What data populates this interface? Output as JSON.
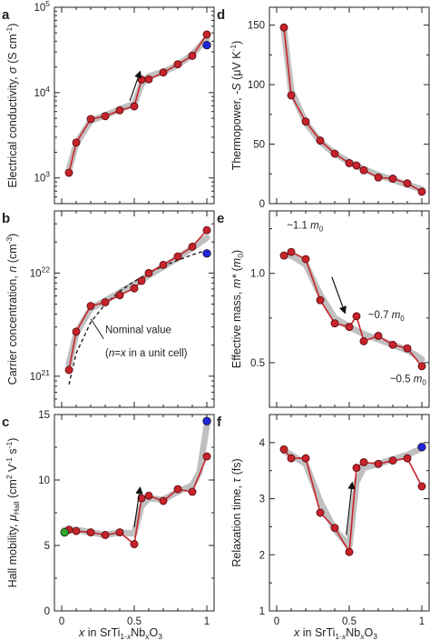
{
  "colors": {
    "line": "#c8232b",
    "marker_fill": "#c8232b",
    "marker_edge": "#5a0f12",
    "trend": "#b9b9b9",
    "extra_blue": "#2226d8",
    "extra_green": "#2ea82e",
    "nominal_dash": "#111111"
  },
  "shared_xlabel": "x in SrTi1-xNbxO3",
  "chart_data": [
    {
      "id": "a",
      "type": "line",
      "letter": "a",
      "ylabel": "Electrical conductivity, σ (S cm-1)",
      "yscale": "log",
      "xlim": [
        -0.05,
        1.05
      ],
      "ylim": [
        500,
        100000
      ],
      "xticks": [
        0,
        0.5,
        1
      ],
      "xtick_labels": [],
      "yticks": [
        1000,
        10000,
        100000
      ],
      "ytick_labels": [
        "10^3",
        "10^4",
        "10^5"
      ],
      "series": [
        {
          "x": [
            0.05,
            0.1,
            0.2,
            0.3,
            0.4,
            0.5,
            0.55,
            0.6,
            0.7,
            0.8,
            0.9,
            1.0
          ],
          "y": [
            1150,
            2600,
            4900,
            5300,
            6200,
            6900,
            14200,
            14300,
            17200,
            21500,
            27000,
            48000
          ]
        }
      ],
      "trend": {
        "x": [
          0.05,
          0.1,
          0.2,
          0.3,
          0.4,
          0.5,
          0.55,
          0.6,
          0.7,
          0.8,
          0.9,
          1.0
        ],
        "y": [
          1250,
          2500,
          4700,
          5400,
          6400,
          7400,
          12500,
          15500,
          17500,
          21000,
          28000,
          43000
        ]
      },
      "extra_points": [
        {
          "x": 1.0,
          "y": 36000,
          "color": "blue"
        }
      ],
      "arrows": [
        {
          "from": [
            0.47,
            8000
          ],
          "to": [
            0.54,
            17500
          ]
        }
      ],
      "annotations": []
    },
    {
      "id": "b",
      "type": "line",
      "letter": "b",
      "ylabel": "Carrier concentration, n (cm-3)",
      "yscale": "log",
      "xlim": [
        -0.05,
        1.05
      ],
      "ylim": [
        5e+20,
        4e+22
      ],
      "xticks": [
        0,
        0.5,
        1
      ],
      "xtick_labels": [],
      "yticks": [
        1e+21,
        1e+22
      ],
      "ytick_labels": [
        "10^21",
        "10^22"
      ],
      "series": [
        {
          "x": [
            0.05,
            0.1,
            0.2,
            0.3,
            0.4,
            0.5,
            0.55,
            0.6,
            0.7,
            0.8,
            0.9,
            1.0
          ],
          "y": [
            1.15e+21,
            2.7e+21,
            4.8e+21,
            5.2e+21,
            6.1e+21,
            7.1e+21,
            8.4e+21,
            1e+22,
            1.2e+22,
            1.45e+22,
            1.8e+22,
            2.6e+22
          ]
        }
      ],
      "trend": {
        "x": [
          0.05,
          0.1,
          0.2,
          0.3,
          0.4,
          0.5,
          0.6,
          0.7,
          0.8,
          0.9,
          1.0
        ],
        "y": [
          1.3e+21,
          2.6e+21,
          4.5e+21,
          5.4e+21,
          6.5e+21,
          7.8e+21,
          9.5e+21,
          1.15e+22,
          1.4e+22,
          1.75e+22,
          2.2e+22
        ]
      },
      "nominal": {
        "x": [
          0.05,
          0.1,
          0.2,
          0.3,
          0.4,
          0.5,
          0.6,
          0.7,
          0.8,
          0.9,
          1.0
        ],
        "y": [
          8.3e+20,
          1.67e+21,
          3.33e+21,
          5e+21,
          6.67e+21,
          8.3e+21,
          1e+22,
          1.17e+22,
          1.33e+22,
          1.5e+22,
          1.67e+22
        ]
      },
      "extra_points": [
        {
          "x": 1.0,
          "y": 1.55e+22,
          "color": "blue"
        }
      ],
      "arrows": [],
      "annotations": [
        {
          "id": "nominal-value-label",
          "text": "Nominal value",
          "x": 0.3,
          "y": 2.6e+21,
          "anchor": "start"
        },
        {
          "id": "nominal-def-label",
          "text": "(n=x in a unit cell)",
          "x": 0.3,
          "y": 1.55e+21,
          "anchor": "start"
        }
      ]
    },
    {
      "id": "c",
      "type": "line",
      "letter": "c",
      "ylabel": "Hall mobility, μHall (cm2 V-1 s-1)",
      "yscale": "linear",
      "xlim": [
        -0.05,
        1.05
      ],
      "ylim": [
        0,
        15
      ],
      "xticks": [
        0,
        0.5,
        1
      ],
      "xtick_labels": [
        "0",
        "0.5",
        "1"
      ],
      "yticks": [
        0,
        5,
        10,
        15
      ],
      "ytick_labels": [
        "0",
        "5",
        "10",
        "15"
      ],
      "series": [
        {
          "x": [
            0.02,
            0.05,
            0.1,
            0.2,
            0.3,
            0.4,
            0.5,
            0.55,
            0.6,
            0.7,
            0.8,
            0.9,
            1.0
          ],
          "y": [
            6.0,
            6.2,
            6.1,
            6.0,
            5.8,
            6.0,
            5.1,
            8.6,
            8.8,
            8.4,
            9.3,
            9.1,
            11.8
          ]
        }
      ],
      "trend": {
        "x": [
          0.02,
          0.05,
          0.1,
          0.2,
          0.3,
          0.4,
          0.5,
          0.55,
          0.6,
          0.7,
          0.8,
          0.9,
          0.95,
          1.0
        ],
        "y": [
          6.2,
          6.2,
          6.2,
          6.0,
          5.8,
          6.0,
          5.9,
          8.0,
          8.6,
          8.5,
          9.1,
          9.6,
          10.6,
          14.2
        ]
      },
      "extra_points": [
        {
          "x": 1.0,
          "y": 14.5,
          "color": "blue"
        },
        {
          "x": 0.02,
          "y": 6.0,
          "color": "green"
        }
      ],
      "arrows": [
        {
          "from": [
            0.5,
            6.4
          ],
          "to": [
            0.54,
            9.4
          ]
        }
      ],
      "annotations": []
    },
    {
      "id": "d",
      "type": "line",
      "letter": "d",
      "ylabel": "Thermopower, -S (μV K-1)",
      "yscale": "linear",
      "xlim": [
        -0.05,
        1.05
      ],
      "ylim": [
        0,
        165
      ],
      "xticks": [
        0,
        0.5,
        1
      ],
      "xtick_labels": [],
      "yticks": [
        0,
        50,
        100,
        150
      ],
      "ytick_labels": [
        "0",
        "50",
        "100",
        "150"
      ],
      "series": [
        {
          "x": [
            0.05,
            0.1,
            0.2,
            0.3,
            0.4,
            0.5,
            0.55,
            0.6,
            0.7,
            0.8,
            0.9,
            1.0
          ],
          "y": [
            148,
            91,
            69,
            53,
            42,
            34,
            32,
            28,
            22,
            21,
            17,
            10
          ]
        }
      ],
      "trend": {
        "x": [
          0.05,
          0.1,
          0.2,
          0.3,
          0.4,
          0.5,
          0.6,
          0.7,
          0.8,
          0.9,
          1.0
        ],
        "y": [
          146,
          95,
          68,
          52,
          42,
          35,
          29,
          24,
          20,
          16,
          12
        ]
      },
      "extra_points": [],
      "arrows": [],
      "annotations": []
    },
    {
      "id": "e",
      "type": "line",
      "letter": "e",
      "ylabel": "Effective mass, m* (m0)",
      "yscale": "linear",
      "xlim": [
        -0.05,
        1.05
      ],
      "ylim": [
        0.25,
        1.35
      ],
      "xticks": [
        0,
        0.5,
        1
      ],
      "xtick_labels": [],
      "yticks": [
        0.5,
        1.0
      ],
      "ytick_labels": [
        "0.5",
        "1.0"
      ],
      "series": [
        {
          "x": [
            0.05,
            0.1,
            0.2,
            0.3,
            0.4,
            0.5,
            0.55,
            0.6,
            0.7,
            0.8,
            0.9,
            1.0
          ],
          "y": [
            1.1,
            1.12,
            1.08,
            0.85,
            0.72,
            0.7,
            0.76,
            0.62,
            0.65,
            0.6,
            0.58,
            0.48
          ]
        }
      ],
      "trend": {
        "x": [
          0.05,
          0.1,
          0.2,
          0.3,
          0.4,
          0.5,
          0.6,
          0.7,
          0.8,
          0.9,
          1.0
        ],
        "y": [
          1.1,
          1.1,
          1.05,
          0.88,
          0.75,
          0.7,
          0.66,
          0.63,
          0.6,
          0.57,
          0.52
        ]
      },
      "extra_points": [],
      "arrows": [
        {
          "from": [
            0.38,
            0.98
          ],
          "to": [
            0.47,
            0.78
          ]
        }
      ],
      "annotations": [
        {
          "id": "mass-label-high",
          "text": "~1.1 m0",
          "x": 0.07,
          "y": 1.25,
          "anchor": "start"
        },
        {
          "id": "mass-label-mid",
          "text": "~0.7 m0",
          "x": 0.63,
          "y": 0.75,
          "anchor": "start"
        },
        {
          "id": "mass-label-low",
          "text": "~0.5 m0",
          "x": 1.03,
          "y": 0.39,
          "anchor": "end"
        }
      ]
    },
    {
      "id": "f",
      "type": "line",
      "letter": "f",
      "ylabel": "Relaxation time, τ (fs)",
      "yscale": "linear",
      "xlim": [
        -0.05,
        1.05
      ],
      "ylim": [
        1,
        4.5
      ],
      "xticks": [
        0,
        0.5,
        1
      ],
      "xtick_labels": [
        "0",
        "0.5",
        "1"
      ],
      "yticks": [
        1,
        2,
        3,
        4
      ],
      "ytick_labels": [
        "1",
        "2",
        "3",
        "4"
      ],
      "series": [
        {
          "x": [
            0.05,
            0.1,
            0.2,
            0.3,
            0.4,
            0.5,
            0.55,
            0.6,
            0.7,
            0.8,
            0.9,
            1.0
          ],
          "y": [
            3.88,
            3.72,
            3.72,
            2.75,
            2.48,
            2.05,
            3.55,
            3.65,
            3.62,
            3.68,
            3.72,
            3.22
          ]
        }
      ],
      "trend": {
        "x": [
          0.05,
          0.1,
          0.2,
          0.3,
          0.4,
          0.5,
          0.55,
          0.6,
          0.7,
          0.8,
          0.9,
          1.0
        ],
        "y": [
          3.85,
          3.78,
          3.62,
          2.95,
          2.45,
          2.15,
          3.3,
          3.55,
          3.62,
          3.7,
          3.78,
          3.9
        ]
      },
      "extra_points": [
        {
          "x": 1.0,
          "y": 3.92,
          "color": "blue"
        }
      ],
      "arrows": [
        {
          "from": [
            0.48,
            2.35
          ],
          "to": [
            0.52,
            3.28
          ]
        }
      ],
      "annotations": []
    }
  ]
}
